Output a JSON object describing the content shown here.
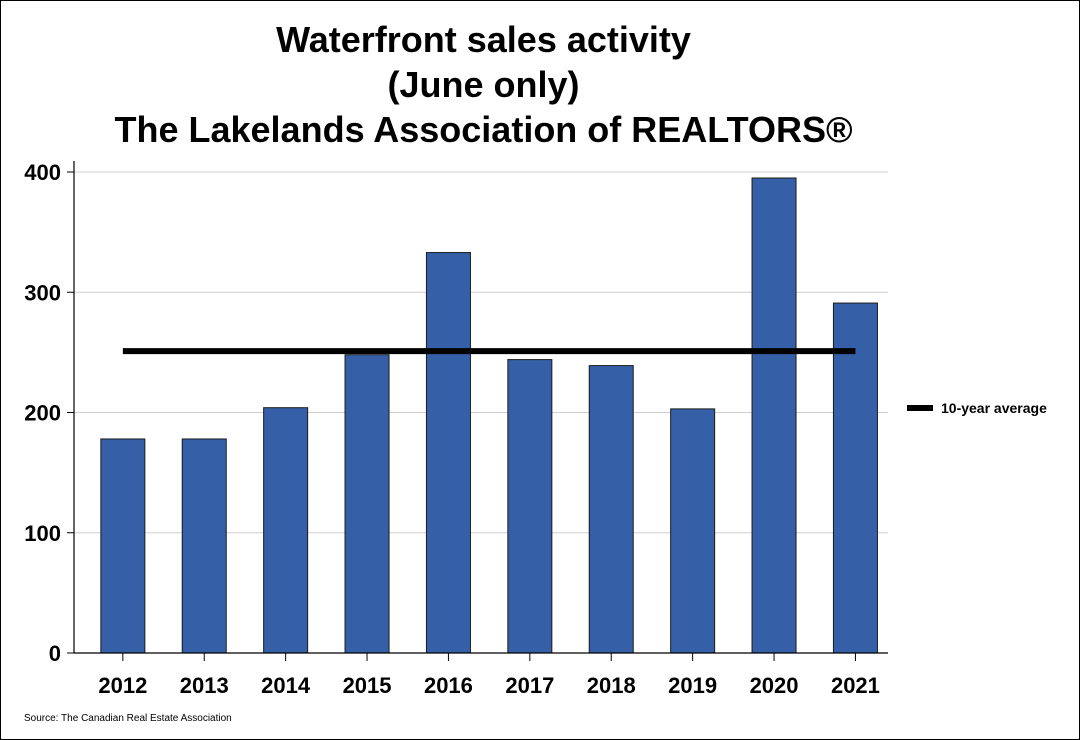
{
  "title_lines": [
    "Waterfront sales activity",
    "(June only)",
    "The Lakelands Association of REALTORS®"
  ],
  "source": "Source: The Canadian Real Estate Association",
  "colors": {
    "bar": "#3560a8",
    "bar_outline": "#1a1a1a",
    "average_line": "#000000",
    "grid": "#cfcfcf"
  },
  "chart_data": {
    "type": "bar",
    "categories": [
      "2012",
      "2013",
      "2014",
      "2015",
      "2016",
      "2017",
      "2018",
      "2019",
      "2020",
      "2021"
    ],
    "values": [
      178,
      178,
      204,
      248,
      333,
      244,
      239,
      203,
      395,
      291
    ],
    "average": {
      "name": "10-year average",
      "value": 251,
      "type": "line"
    },
    "ylim": [
      0,
      400
    ],
    "yticks": [
      0,
      100,
      200,
      300,
      400
    ],
    "grid": true,
    "legend_position": "right",
    "xlabel": "",
    "ylabel": ""
  }
}
